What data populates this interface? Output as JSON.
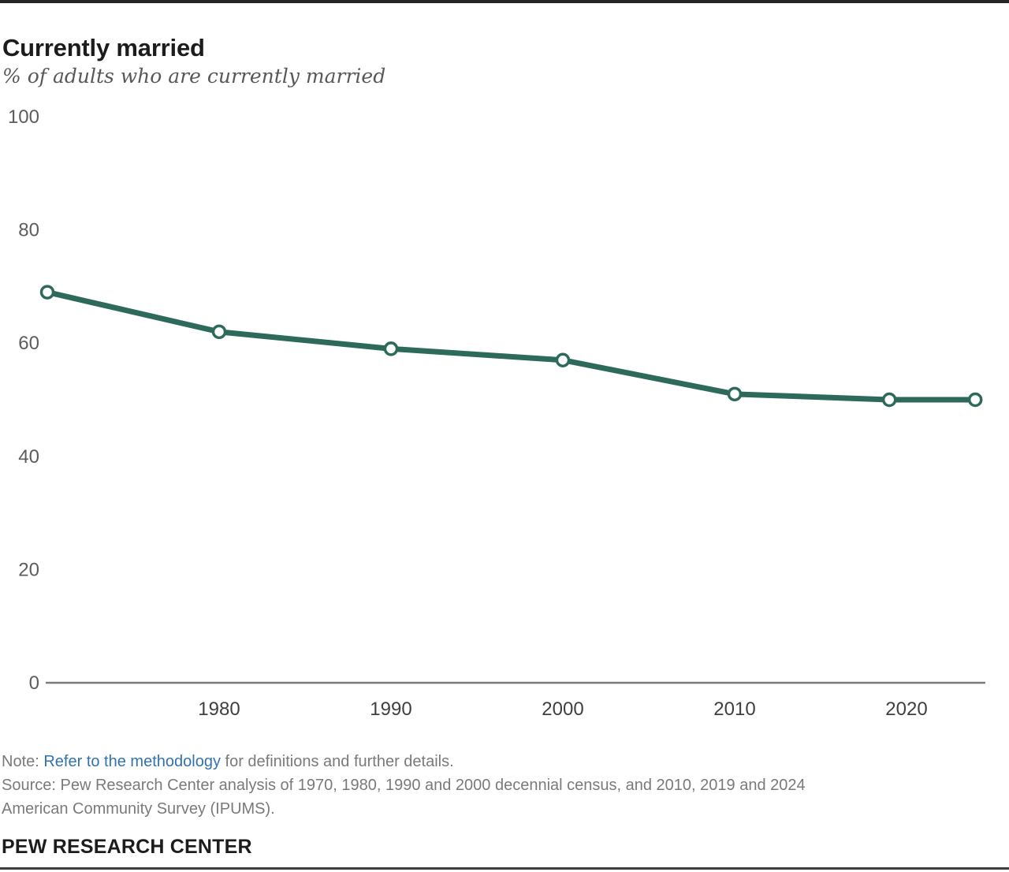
{
  "title": "Currently married",
  "subtitle": "% of adults who are currently married",
  "chart_data": {
    "type": "line",
    "title": "Currently married",
    "series_name": "Currently married",
    "x": [
      1970,
      1980,
      1990,
      2000,
      2010,
      2019,
      2024
    ],
    "values": [
      69,
      62,
      59,
      57,
      51,
      50,
      50
    ],
    "xlabel": "",
    "ylabel": "% of adults who are currently married",
    "xticks": [
      1980,
      1990,
      2000,
      2010,
      2020
    ],
    "yticks": [
      0,
      20,
      40,
      60,
      80,
      100
    ],
    "ylim": [
      0,
      100
    ],
    "xlim": [
      1970,
      2024
    ],
    "grid": false,
    "legend_position": "none",
    "line_color": "#2d6a5c",
    "marker": "open-circle"
  },
  "colors": {
    "line": "#2d6a5c",
    "marker_fill": "#ffffff",
    "axis": "#7c7c7c",
    "ytick_label": "#5d5d5d",
    "xtick_label": "#3f3f3f",
    "link_blue": "#3272b0",
    "note_gray": "#7a7a7a",
    "title_dark": "#1c1c1c"
  },
  "notes": {
    "note_prefix": "Note: ",
    "methodology_link": "Refer to the methodology",
    "note_suffix": " for definitions and further details.",
    "source_line1": "Source: Pew Research Center analysis of 1970, 1980, 1990 and 2000 decennial census, and 2010, 2019 and 2024",
    "source_line2": "American Community Survey (IPUMS)."
  },
  "footer": {
    "brand": "PEW RESEARCH CENTER"
  }
}
